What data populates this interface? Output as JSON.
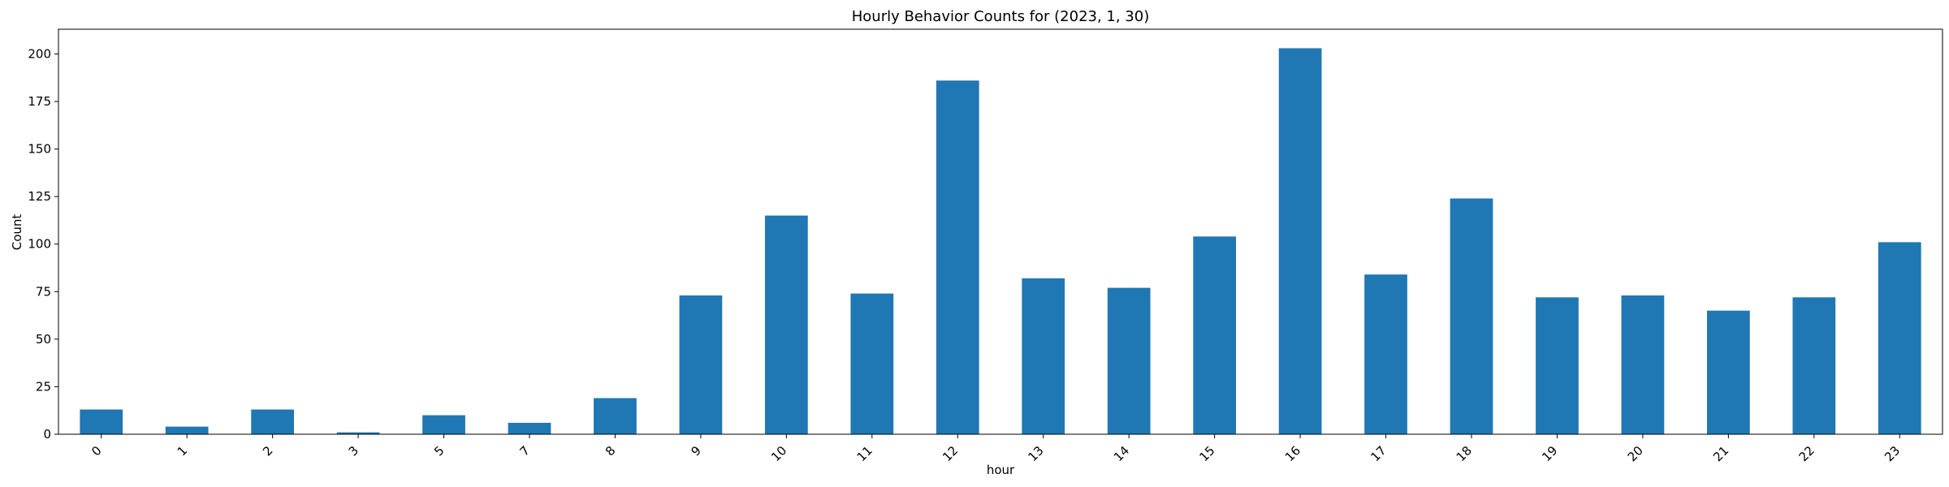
{
  "chart_data": {
    "type": "bar",
    "title": "Hourly Behavior Counts for (2023, 1, 30)",
    "xlabel": "hour",
    "ylabel": "Count",
    "categories": [
      "0",
      "1",
      "2",
      "3",
      "5",
      "7",
      "8",
      "9",
      "10",
      "11",
      "12",
      "13",
      "14",
      "15",
      "16",
      "17",
      "18",
      "19",
      "20",
      "21",
      "22",
      "23"
    ],
    "values": [
      13,
      4,
      13,
      1,
      10,
      6,
      19,
      73,
      115,
      74,
      186,
      82,
      77,
      104,
      203,
      84,
      124,
      72,
      73,
      65,
      72,
      101
    ],
    "ylim": [
      0,
      213
    ],
    "yticks": [
      0,
      25,
      50,
      75,
      100,
      125,
      150,
      175,
      200
    ],
    "bar_color": "#1f77b4",
    "grid": false,
    "legend": "none"
  }
}
